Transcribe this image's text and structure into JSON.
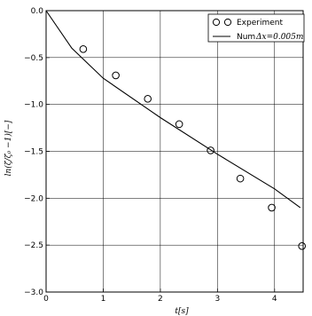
{
  "chart_data": {
    "type": "scatter",
    "title": "",
    "xlabel": "t[s]",
    "ylabel": "ln(ζ/ζ₀ −1)[−]",
    "xlim": [
      0,
      4.5
    ],
    "ylim": [
      -3.0,
      0.0
    ],
    "grid": true,
    "x_ticks": [
      "0",
      "1",
      "2",
      "3",
      "4"
    ],
    "y_ticks": [
      "0.0",
      "−0.5",
      "−1.0",
      "−1.5",
      "−2.0",
      "−2.5",
      "−3.0"
    ],
    "legend_position": "top-right",
    "series": [
      {
        "name": "Experiment",
        "style": "open-circle-marker",
        "points": [
          {
            "x": 0.65,
            "y": -0.41
          },
          {
            "x": 1.22,
            "y": -0.69
          },
          {
            "x": 1.78,
            "y": -0.94
          },
          {
            "x": 2.33,
            "y": -1.21
          },
          {
            "x": 2.88,
            "y": -1.49
          },
          {
            "x": 3.4,
            "y": -1.79
          },
          {
            "x": 3.95,
            "y": -2.1
          },
          {
            "x": 4.48,
            "y": -2.51
          }
        ]
      },
      {
        "name": "Num Δx=0.005m",
        "style": "line",
        "points": [
          {
            "x": 0.0,
            "y": 0.0
          },
          {
            "x": 0.45,
            "y": -0.4
          },
          {
            "x": 1.0,
            "y": -0.72
          },
          {
            "x": 2.0,
            "y": -1.14
          },
          {
            "x": 3.0,
            "y": -1.53
          },
          {
            "x": 4.0,
            "y": -1.9
          },
          {
            "x": 4.45,
            "y": -2.1
          }
        ]
      }
    ]
  },
  "legend": {
    "experiment_label": "Experiment",
    "num_label": "Num",
    "num_math": "Δx=0.005m"
  },
  "colors": {
    "lines": "#000000",
    "grid": "#000000",
    "background": "#ffffff"
  }
}
